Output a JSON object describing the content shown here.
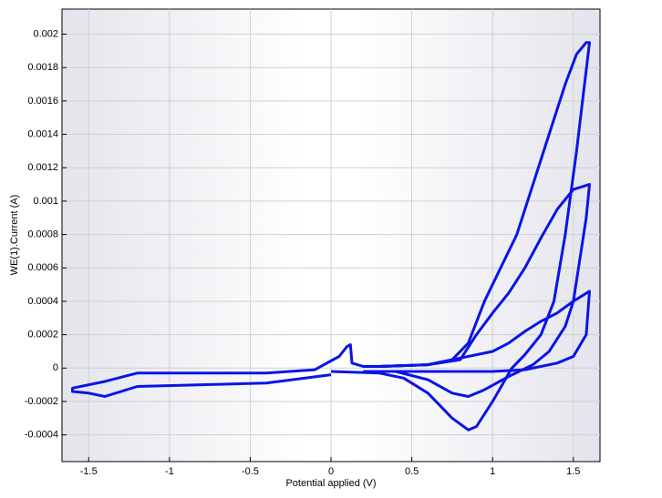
{
  "chart_data": {
    "type": "line",
    "x_label": "Potential applied (V)",
    "y_label": "WE(1).Current (A)",
    "xlim": [
      -1.665,
      1.665
    ],
    "ylim": [
      -0.00056,
      0.00215
    ],
    "xticks": [
      -1.5,
      -1,
      -0.5,
      0,
      0.5,
      1,
      1.5
    ],
    "yticks": [
      0.002,
      0.0018,
      0.0016,
      0.0014,
      0.0012,
      0.001,
      0.0008,
      0.0006,
      0.0004,
      0.0002,
      0,
      -0.0002,
      -0.0004
    ],
    "grid": true,
    "series": [
      {
        "color": "#0a14e6",
        "x": [
          0,
          -0.4,
          -0.8,
          -1.2,
          -1.4,
          -1.5,
          -1.6,
          -1.6,
          -1.4,
          -1.2,
          -0.8,
          -0.4,
          -0.1,
          0.05,
          0.1,
          0.12,
          0.13,
          0.2,
          0.3,
          0.6,
          0.75,
          0.85,
          0.95,
          1.05,
          1.15,
          1.25,
          1.35,
          1.45,
          1.52,
          1.58,
          1.6,
          1.52,
          1.45,
          1.38,
          1.3,
          1.2,
          1.12,
          1.0,
          0.9,
          0.85,
          0.75,
          0.6,
          0.45,
          0.3,
          0
        ],
        "values": [
          -4e-05,
          -9e-05,
          -0.0001,
          -0.00011,
          -0.00017,
          -0.00015,
          -0.00014,
          -0.00012,
          -8e-05,
          -3e-05,
          -3e-05,
          -3e-05,
          -1e-05,
          7e-05,
          0.00013,
          0.00014,
          3e-05,
          1e-05,
          1e-05,
          2e-05,
          5e-05,
          0.00015,
          0.0004,
          0.0006,
          0.0008,
          0.0011,
          0.0014,
          0.0017,
          0.00188,
          0.00195,
          0.00195,
          0.0013,
          0.0008,
          0.0004,
          0.0002,
          8e-05,
          0,
          -0.0002,
          -0.00035,
          -0.00037,
          -0.0003,
          -0.00015,
          -6e-05,
          -3e-05,
          -2e-05
        ]
      },
      {
        "color": "#0a14e6",
        "x": [
          0.3,
          0.6,
          0.8,
          0.9,
          1.0,
          1.1,
          1.2,
          1.3,
          1.4,
          1.5,
          1.6,
          1.58,
          1.5,
          1.45,
          1.35,
          1.25,
          1.1,
          0.95,
          0.85,
          0.75,
          0.6,
          0.4,
          0.2
        ],
        "values": [
          1e-05,
          2e-05,
          5e-05,
          0.0002,
          0.00033,
          0.00045,
          0.0006,
          0.00078,
          0.00095,
          0.00107,
          0.0011,
          0.0009,
          0.0004,
          0.00025,
          0.0001,
          2e-05,
          -5e-05,
          -0.00013,
          -0.00017,
          -0.00015,
          -7e-05,
          -2e-05,
          -2e-05
        ]
      },
      {
        "color": "#0a14e6",
        "x": [
          0.3,
          0.6,
          0.9,
          1.0,
          1.1,
          1.2,
          1.3,
          1.4,
          1.5,
          1.6,
          1.58,
          1.5,
          1.4,
          1.2,
          1.0,
          0.7,
          0.4,
          0.2
        ],
        "values": [
          1e-05,
          2e-05,
          8e-05,
          0.0001,
          0.00015,
          0.00022,
          0.00028,
          0.00033,
          0.0004,
          0.00046,
          0.0002,
          7e-05,
          3e-05,
          -1e-05,
          -2e-05,
          -2e-05,
          -2e-05,
          -2e-05
        ]
      }
    ]
  }
}
